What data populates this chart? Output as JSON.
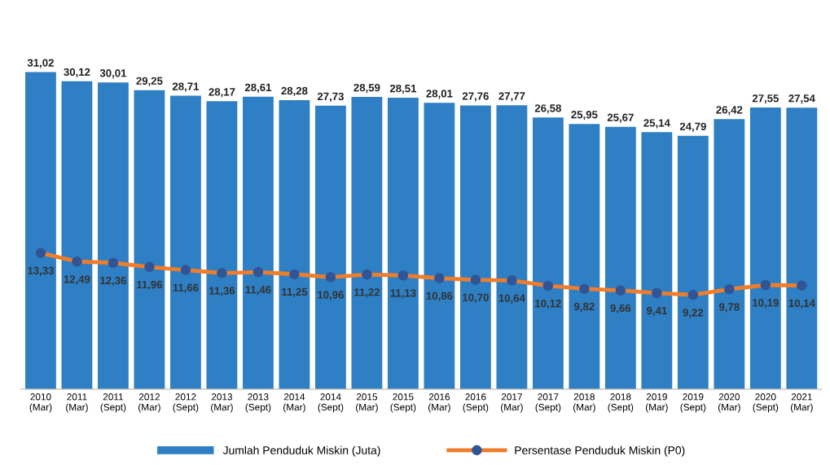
{
  "chart_data": {
    "type": "bar",
    "categories": [
      "2010\n(Mar)",
      "2011\n(Mar)",
      "2011\n(Sept)",
      "2012\n(Mar)",
      "2012\n(Sept)",
      "2013\n(Mar)",
      "2013\n(Sept)",
      "2014\n(Mar)",
      "2014\n(Sept)",
      "2015\n(Mar)",
      "2015\n(Sept)",
      "2016\n(Mar)",
      "2016\n(Sept)",
      "2017\n(Mar)",
      "2017\n(Sept)",
      "2018\n(Mar)",
      "2018\n(Sept)",
      "2019\n(Mar)",
      "2019\n(Sept)",
      "2020\n(Mar)",
      "2020\n(Sept)",
      "2021\n(Mar)"
    ],
    "series": [
      {
        "name": "Jumlah Penduduk Miskin (Juta)",
        "color": "#2e7fc4",
        "values": [
          31.02,
          30.12,
          30.01,
          29.25,
          28.71,
          28.17,
          28.61,
          28.28,
          27.73,
          28.59,
          28.51,
          28.01,
          27.76,
          27.77,
          26.58,
          25.95,
          25.67,
          25.14,
          24.79,
          26.42,
          27.55,
          27.54
        ],
        "value_labels": [
          "31,02",
          "30,12",
          "30,01",
          "29,25",
          "28,71",
          "28,17",
          "28,61",
          "28,28",
          "27,73",
          "28,59",
          "28,51",
          "28,01",
          "27,76",
          "27,77",
          "26,58",
          "25,95",
          "25,67",
          "25,14",
          "24,79",
          "26,42",
          "27,55",
          "27,54"
        ]
      },
      {
        "name": "Persentase Penduduk Miskin (P0)",
        "type": "line",
        "color": "#f07d2a",
        "marker": "circle",
        "values": [
          13.33,
          12.49,
          12.36,
          11.96,
          11.66,
          11.36,
          11.46,
          11.25,
          10.96,
          11.22,
          11.13,
          10.86,
          10.7,
          10.64,
          10.12,
          9.82,
          9.66,
          9.41,
          9.22,
          9.78,
          10.19,
          10.14
        ],
        "value_labels": [
          "13,33",
          "12,49",
          "12,36",
          "11,96",
          "11,66",
          "11,36",
          "11,46",
          "11,25",
          "10,96",
          "11,22",
          "11,13",
          "10,86",
          "10,70",
          "10,64",
          "10,12",
          "9,82",
          "9,66",
          "9,41",
          "9,22",
          "9,78",
          "10,19",
          "10,14"
        ]
      }
    ],
    "tick_labels": "x",
    "grid": false,
    "legend": "bottom"
  }
}
